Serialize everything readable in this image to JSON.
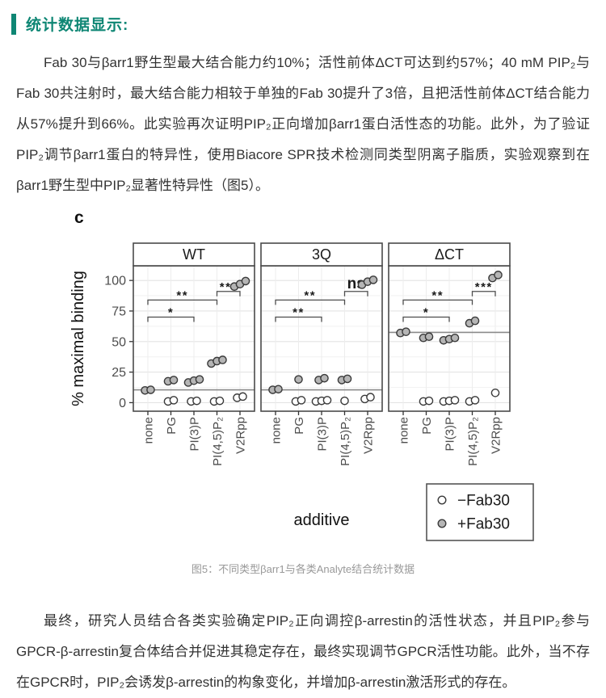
{
  "colors": {
    "accent": "#0e8674",
    "body_text": "#333333",
    "caption_text": "#999999",
    "panel_border": "#4a4a4a",
    "grid_major": "#e4e4e4",
    "grid_minor": "#f2f2f2",
    "reference_line": "#8a8a8a",
    "point_stroke": "#3a3a3a",
    "minus_fab30_fill": "#ffffff",
    "plus_fab30_fill": "#b5b5b5",
    "axis_text": "#4d4d4d",
    "chart_text": "#111111"
  },
  "header": {
    "title": "统计数据显示:"
  },
  "paragraphs": {
    "intro": "Fab 30与βarr1野生型最大结合能力约10%；活性前体ΔCT可达到约57%；40 mM PIP₂与Fab 30共注射时，最大结合能力相较于单独的Fab 30提升了3倍，且把活性前体ΔCT结合能力从57%提升到66%。此实验再次证明PIP₂正向增加βarr1蛋白活性态的功能。此外，为了验证PIP₂调节βarr1蛋白的特异性，使用Biacore SPR技术检测同类型阴离子脂质，实验观察到在βarr1野生型中PIP₂显著性特异性（图5）。",
    "conclusion": "最终，研究人员结合各类实验确定PIP₂正向调控β-arrestin的活性状态，并且PIP₂参与GPCR-β-arrestin复合体结合并促进其稳定存在，最终实现调节GPCR活性功能。此外，当不存在GPCR时，PIP₂会诱发β-arrestin的构象变化，并增加β-arrestin激活形式的存在。"
  },
  "figure": {
    "caption": "图5：不同类型βarr1与各类Analyte结合统计数据"
  },
  "chart_data": {
    "type": "scatter",
    "figure_label": "c",
    "ylabel": "% maximal binding",
    "xlabel": "additive",
    "ylim": [
      -7,
      112
    ],
    "yticks": [
      0,
      25,
      50,
      75,
      100
    ],
    "grid": true,
    "categories": [
      "none",
      "PG",
      "PI(3)P",
      "PI(4,5)P₂",
      "V2Rpp"
    ],
    "legend": {
      "position": "bottom-right",
      "entries": [
        {
          "series": "minus_fab30",
          "label": "−Fab30"
        },
        {
          "series": "plus_fab30",
          "label": "+Fab30"
        }
      ]
    },
    "panels": [
      {
        "title": "WT",
        "reference_line": 10.5,
        "significance": [
          {
            "from": "none",
            "to": "PI(3)P",
            "label": "*",
            "height": 70
          },
          {
            "from": "none",
            "to": "PI(4,5)P₂",
            "label": "**",
            "height": 84
          },
          {
            "from": "PI(4,5)P₂",
            "to": "V2Rpp",
            "label": "***",
            "height": 91
          }
        ],
        "series": {
          "minus_fab30": [
            [],
            [
              1,
              2
            ],
            [
              1,
              1.5
            ],
            [
              1,
              1.5
            ],
            [
              4,
              5
            ]
          ],
          "plus_fab30": [
            [
              10,
              10.5
            ],
            [
              17.5,
              18.5
            ],
            [
              16.5,
              18,
              19
            ],
            [
              32,
              34,
              35
            ],
            [
              95,
              97,
              99.5
            ]
          ]
        }
      },
      {
        "title": "3Q",
        "reference_line": 10.5,
        "significance": [
          {
            "from": "none",
            "to": "PI(3)P",
            "label": "**",
            "height": 70
          },
          {
            "from": "none",
            "to": "PI(4,5)P₂",
            "label": "**",
            "height": 84
          },
          {
            "from": "PI(4,5)P₂",
            "to": "V2Rpp",
            "label": "ns",
            "height": 91
          }
        ],
        "series": {
          "minus_fab30": [
            [],
            [
              1,
              2
            ],
            [
              1,
              1.5,
              2
            ],
            [
              1.5
            ],
            [
              3,
              4.5
            ]
          ],
          "plus_fab30": [
            [
              10.5,
              11
            ],
            [
              19
            ],
            [
              18.5,
              20
            ],
            [
              18.5,
              19.5
            ],
            [
              96.5,
              99,
              100.5
            ]
          ]
        }
      },
      {
        "title": "ΔCT",
        "reference_line": 57.5,
        "significance": [
          {
            "from": "none",
            "to": "PI(3)P",
            "label": "*",
            "height": 70
          },
          {
            "from": "none",
            "to": "PI(4,5)P₂",
            "label": "**",
            "height": 84
          },
          {
            "from": "PI(4,5)P₂",
            "to": "V2Rpp",
            "label": "***",
            "height": 91
          }
        ],
        "series": {
          "minus_fab30": [
            [],
            [
              1,
              1.5
            ],
            [
              1,
              1.5,
              2
            ],
            [
              1,
              2
            ],
            [
              8
            ]
          ],
          "plus_fab30": [
            [
              57,
              58
            ],
            [
              53,
              54
            ],
            [
              51,
              52,
              53
            ],
            [
              65,
              67
            ],
            [
              102,
              104.5
            ]
          ]
        }
      }
    ]
  }
}
